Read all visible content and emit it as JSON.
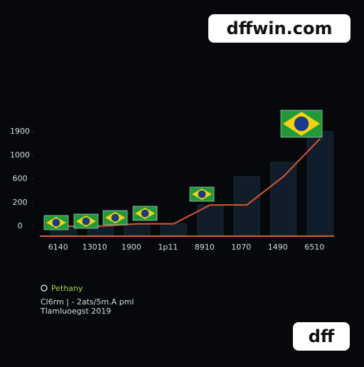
{
  "watermark_top": "dffwin.com",
  "watermark_bottom": "dff",
  "chart_data": {
    "type": "bar-line",
    "categories": [
      "6140",
      "13010",
      "1900",
      "1p11",
      "8910",
      "1070",
      "1490",
      "6510"
    ],
    "series": [
      {
        "color": "#111d2b",
        "values": [
          0,
          0,
          20,
          20,
          180,
          640,
          880,
          1900
        ]
      },
      {
        "name": "Pethany",
        "color": "#d9582b",
        "values": [
          0,
          0,
          20,
          20,
          180,
          180,
          640,
          1630
        ]
      }
    ],
    "ylim": [
      0,
      1900
    ],
    "yticks": [
      0,
      200,
      600,
      1000,
      1900
    ],
    "notes": [
      "Cl6rm | - 2ats/5m.A pml",
      "Tlamluoegst 2019"
    ]
  }
}
